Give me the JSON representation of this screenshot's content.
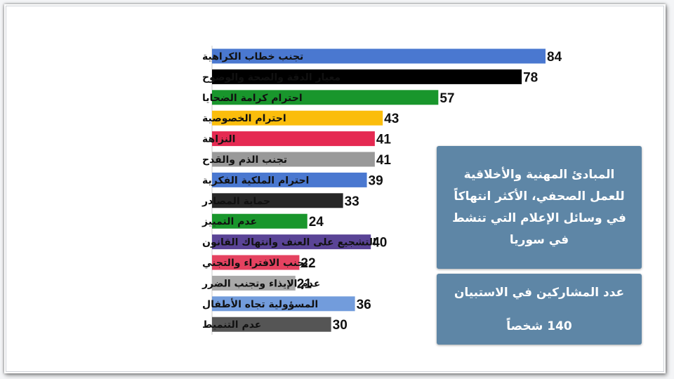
{
  "chart_data": {
    "type": "bar",
    "orientation": "horizontal",
    "categories": [
      "تجنب خطاب الكراهية",
      "معيار الدقة والصحة والوضوح",
      "احترام كرامة الضحايا",
      "احترام الخصوصية",
      "النزاهة",
      "تجنب الذم والقدح",
      "احترام الملكية الفكرية",
      "حماية المصادر",
      "عدم التمييز",
      "التشجيع على العنف وانتهاك القانون",
      "تجنب الافتراء والتجني",
      "عدم الإيذاء وتجنب الضرر",
      "المسؤولية تجاه الأطفال",
      "عدم التنميط"
    ],
    "values": [
      84,
      78,
      57,
      43,
      41,
      41,
      39,
      33,
      24,
      40,
      22,
      21,
      36,
      30
    ],
    "colors": [
      "#4a78d0",
      "#000000",
      "#19962c",
      "#fbbd0c",
      "#e52a52",
      "#999999",
      "#4a78d0",
      "#272727",
      "#19962c",
      "#5a4496",
      "#e54260",
      "#a9a9a9",
      "#729cdc",
      "#555555"
    ],
    "xlim": [
      0,
      100
    ],
    "grid": false,
    "legend": "none",
    "title": "",
    "xlabel": "",
    "ylabel": ""
  },
  "info_box": {
    "text": "المبادئ المهنية والأخلاقية للعمل الصحفي، الأكثر انتهاكاً في وسائل الإعلام التي تنشط في سوريا"
  },
  "participants_box": {
    "label": "عدد المشاركين في الاستبيان",
    "value": "140 شخصاً"
  },
  "colors": {
    "box_background": "#5e86a6",
    "page_background": "#ffffff"
  }
}
